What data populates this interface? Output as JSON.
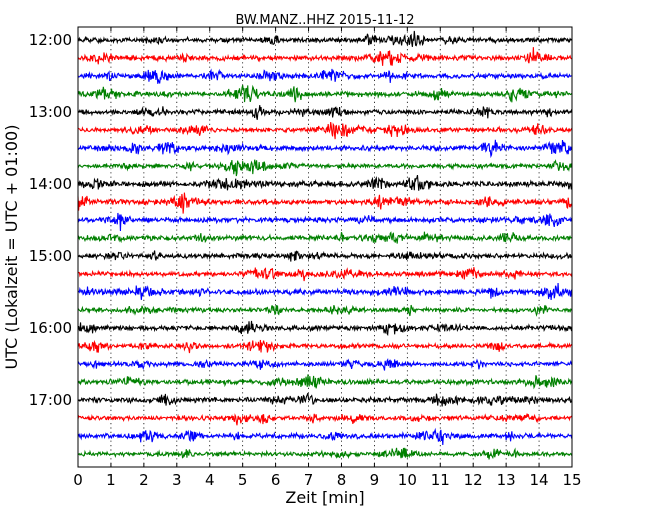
{
  "chart_data": {
    "type": "line",
    "title": "BW.MANZ..HHZ 2015-11-12",
    "xlabel": "Zeit  [min]",
    "ylabel": "UTC (Lokalzeit = UTC + 01:00)",
    "xlim": [
      0,
      15
    ],
    "x_ticks": [
      0,
      1,
      2,
      3,
      4,
      5,
      6,
      7,
      8,
      9,
      10,
      11,
      12,
      13,
      14,
      15
    ],
    "x_tick_labels": [
      "0",
      "1",
      "2",
      "3",
      "4",
      "5",
      "6",
      "7",
      "8",
      "9",
      "10",
      "11",
      "12",
      "13",
      "14",
      "15"
    ],
    "y_tick_labels": [
      "12:00",
      "13:00",
      "14:00",
      "15:00",
      "16:00",
      "17:00"
    ],
    "grid": "vertical dotted",
    "trace_interval_min": 15,
    "color_cycle": [
      "#000000",
      "#ff0000",
      "#0000ff",
      "#008000"
    ],
    "series": [
      {
        "start": "12:00",
        "amplitude": 0.14
      },
      {
        "start": "12:15",
        "amplitude": 0.15
      },
      {
        "start": "12:30",
        "amplitude": 0.15
      },
      {
        "start": "12:45",
        "amplitude": 0.16
      },
      {
        "start": "13:00",
        "amplitude": 0.15
      },
      {
        "start": "13:15",
        "amplitude": 0.14
      },
      {
        "start": "13:30",
        "amplitude": 0.16
      },
      {
        "start": "13:45",
        "amplitude": 0.13
      },
      {
        "start": "14:00",
        "amplitude": 0.17
      },
      {
        "start": "14:15",
        "amplitude": 0.16
      },
      {
        "start": "14:30",
        "amplitude": 0.15
      },
      {
        "start": "14:45",
        "amplitude": 0.15
      },
      {
        "start": "15:00",
        "amplitude": 0.14
      },
      {
        "start": "15:15",
        "amplitude": 0.14
      },
      {
        "start": "15:30",
        "amplitude": 0.16
      },
      {
        "start": "15:45",
        "amplitude": 0.13
      },
      {
        "start": "16:00",
        "amplitude": 0.15
      },
      {
        "start": "16:15",
        "amplitude": 0.13
      },
      {
        "start": "16:30",
        "amplitude": 0.13
      },
      {
        "start": "16:45",
        "amplitude": 0.15
      },
      {
        "start": "17:00",
        "amplitude": 0.16
      },
      {
        "start": "17:15",
        "amplitude": 0.14
      },
      {
        "start": "17:30",
        "amplitude": 0.15
      },
      {
        "start": "17:45",
        "amplitude": 0.13
      }
    ]
  }
}
